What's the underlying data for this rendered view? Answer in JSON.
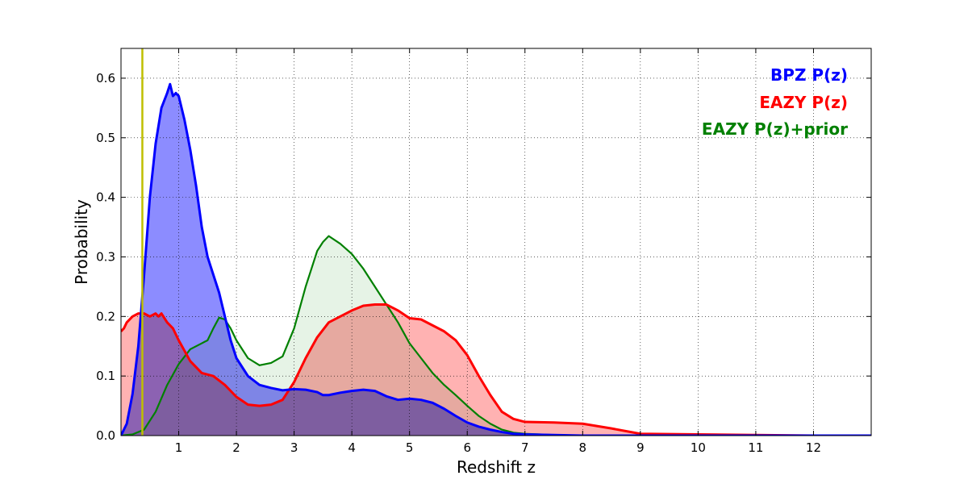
{
  "chart_data": {
    "type": "area",
    "title": "",
    "xlabel": "Redshift z",
    "ylabel": "Probability",
    "xlim": [
      0,
      13
    ],
    "ylim": [
      0,
      0.65
    ],
    "xticks": [
      1,
      2,
      3,
      4,
      5,
      6,
      7,
      8,
      9,
      10,
      11,
      12
    ],
    "yticks": [
      0.0,
      0.1,
      0.2,
      0.3,
      0.4,
      0.5,
      0.6
    ],
    "ytick_labels": [
      "0.0",
      "0.1",
      "0.2",
      "0.3",
      "0.4",
      "0.5",
      "0.6"
    ],
    "grid": true,
    "legend_placement": "top-right",
    "vline": {
      "x": 0.37,
      "color": "#bfbf00"
    },
    "series": [
      {
        "name": "BPZ P(z)",
        "color": "#0000ff",
        "fill": "#7f7fff",
        "x": [
          0.0,
          0.1,
          0.2,
          0.3,
          0.4,
          0.5,
          0.6,
          0.7,
          0.8,
          0.85,
          0.9,
          0.95,
          1.0,
          1.1,
          1.2,
          1.3,
          1.4,
          1.5,
          1.6,
          1.7,
          1.8,
          1.9,
          2.0,
          2.2,
          2.4,
          2.6,
          2.8,
          3.0,
          3.2,
          3.4,
          3.5,
          3.6,
          3.8,
          4.0,
          4.2,
          4.4,
          4.6,
          4.8,
          5.0,
          5.2,
          5.4,
          5.6,
          5.8,
          6.0,
          6.2,
          6.4,
          6.6,
          6.8,
          7.0,
          7.5,
          8.0,
          9.0,
          10.0,
          11.0,
          13.0
        ],
        "y": [
          0.0,
          0.02,
          0.07,
          0.15,
          0.27,
          0.4,
          0.49,
          0.55,
          0.575,
          0.59,
          0.57,
          0.575,
          0.57,
          0.53,
          0.48,
          0.42,
          0.35,
          0.3,
          0.27,
          0.24,
          0.2,
          0.16,
          0.13,
          0.1,
          0.085,
          0.08,
          0.076,
          0.078,
          0.077,
          0.073,
          0.068,
          0.068,
          0.072,
          0.075,
          0.077,
          0.075,
          0.066,
          0.06,
          0.062,
          0.06,
          0.055,
          0.045,
          0.033,
          0.022,
          0.015,
          0.01,
          0.006,
          0.003,
          0.002,
          0.001,
          0.0,
          0.0,
          0.0,
          0.0,
          0.0
        ]
      },
      {
        "name": "EAZY P(z)",
        "color": "#ff0000",
        "fill": "#ff7f7f",
        "x": [
          0.0,
          0.05,
          0.1,
          0.2,
          0.3,
          0.4,
          0.5,
          0.6,
          0.65,
          0.7,
          0.8,
          0.9,
          1.0,
          1.2,
          1.4,
          1.6,
          1.8,
          2.0,
          2.2,
          2.4,
          2.6,
          2.8,
          3.0,
          3.2,
          3.4,
          3.6,
          3.8,
          4.0,
          4.2,
          4.4,
          4.6,
          4.8,
          5.0,
          5.2,
          5.4,
          5.6,
          5.8,
          6.0,
          6.2,
          6.4,
          6.6,
          6.8,
          7.0,
          7.5,
          8.0,
          8.5,
          9.0,
          10.0,
          11.0,
          12.0,
          13.0
        ],
        "y": [
          0.175,
          0.18,
          0.19,
          0.2,
          0.205,
          0.205,
          0.2,
          0.205,
          0.2,
          0.205,
          0.19,
          0.18,
          0.16,
          0.125,
          0.105,
          0.1,
          0.085,
          0.065,
          0.052,
          0.05,
          0.052,
          0.06,
          0.09,
          0.13,
          0.165,
          0.19,
          0.2,
          0.21,
          0.218,
          0.22,
          0.22,
          0.21,
          0.197,
          0.195,
          0.185,
          0.175,
          0.16,
          0.135,
          0.1,
          0.068,
          0.04,
          0.028,
          0.023,
          0.022,
          0.02,
          0.012,
          0.003,
          0.002,
          0.001,
          0.0,
          0.0
        ]
      },
      {
        "name": "EAZY P(z)+prior",
        "color": "#008000",
        "fill": "#e5f2e5",
        "x": [
          0.0,
          0.2,
          0.4,
          0.6,
          0.8,
          1.0,
          1.2,
          1.4,
          1.5,
          1.6,
          1.7,
          1.8,
          1.9,
          2.0,
          2.2,
          2.4,
          2.6,
          2.8,
          3.0,
          3.2,
          3.4,
          3.5,
          3.6,
          3.8,
          4.0,
          4.2,
          4.4,
          4.6,
          4.8,
          5.0,
          5.2,
          5.4,
          5.6,
          5.8,
          6.0,
          6.2,
          6.4,
          6.6,
          6.8,
          7.0,
          7.5,
          8.0,
          9.0,
          10.0,
          11.0,
          13.0
        ],
        "y": [
          0.0,
          0.002,
          0.01,
          0.04,
          0.085,
          0.12,
          0.145,
          0.155,
          0.16,
          0.18,
          0.198,
          0.195,
          0.18,
          0.16,
          0.13,
          0.118,
          0.122,
          0.133,
          0.18,
          0.25,
          0.31,
          0.325,
          0.335,
          0.322,
          0.305,
          0.28,
          0.25,
          0.22,
          0.19,
          0.155,
          0.13,
          0.105,
          0.085,
          0.068,
          0.05,
          0.033,
          0.02,
          0.01,
          0.005,
          0.003,
          0.001,
          0.0,
          0.0,
          0.0,
          0.0,
          0.0
        ]
      }
    ]
  }
}
